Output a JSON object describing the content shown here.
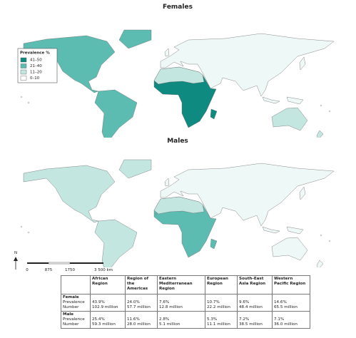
{
  "maps": [
    {
      "title": "Females"
    },
    {
      "title": "Males"
    }
  ],
  "legend": {
    "title": "Prevalence %",
    "items": [
      "41–50",
      "21–40",
      "11–20",
      "0–10"
    ]
  },
  "scale": {
    "north": "N",
    "labels": [
      "0",
      "875",
      "1750",
      "3 500 km"
    ]
  },
  "table": {
    "columns": [
      "African Region",
      "Region of the Americas",
      "Eastern Mediterranean Region",
      "European Region",
      "South-East Asia Region",
      "Western Pacific Region"
    ],
    "groups": [
      {
        "name": "Female",
        "rows": [
          {
            "label": "Prevalence",
            "values": [
              "43.9%",
              "24.0%",
              "7.6%",
              "10.7%",
              "9.6%",
              "14.6%"
            ]
          },
          {
            "label": "Number",
            "values": [
              "102.9 million",
              "57.7 million",
              "12.8 million",
              "22.2 million",
              "48.4 million",
              "65.5 million"
            ]
          }
        ]
      },
      {
        "name": "Male",
        "rows": [
          {
            "label": "Prevalence",
            "values": [
              "25.4%",
              "11.6%",
              "2.8%",
              "5.3%",
              "7.2%",
              "7.1%"
            ]
          },
          {
            "label": "Number",
            "values": [
              "59.3 million",
              "28.0 million",
              "5.1 million",
              "11.1 million",
              "38.5 million",
              "36.0 million"
            ]
          }
        ]
      }
    ]
  }
}
